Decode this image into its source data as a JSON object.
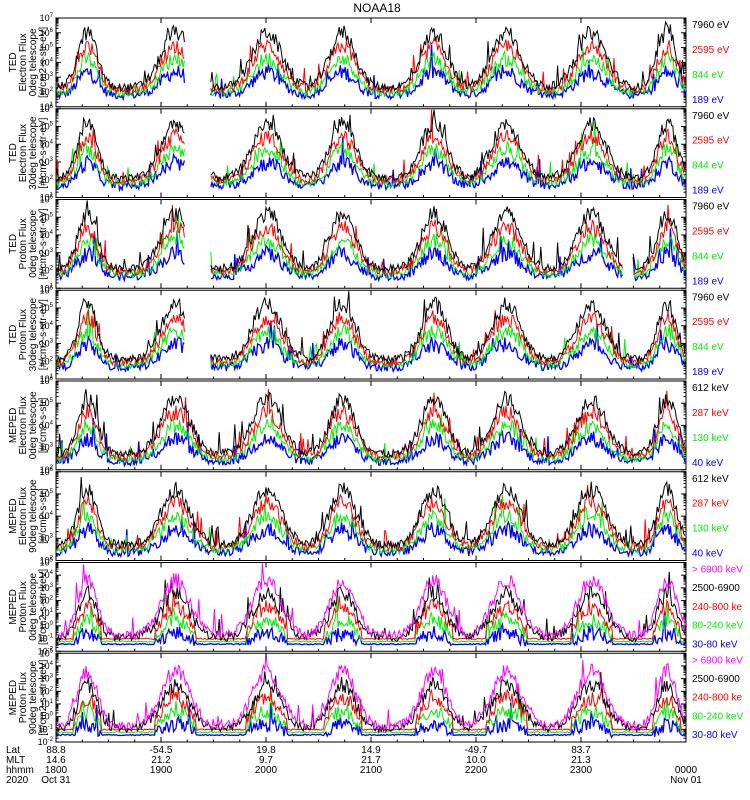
{
  "colors": {
    "black": "#000000",
    "red": "#ff0000",
    "green": "#00ee00",
    "blue": "#0000ff",
    "magenta": "#ff00ff"
  },
  "chart_data": {
    "type": "line",
    "title": "NOAA18",
    "panels": [
      {
        "ylabel": [
          "TED",
          "Electron Flux",
          "0deg telescope",
          "[#/cm2-s-str-eV]"
        ],
        "y_exp_range": [
          1,
          7
        ],
        "channels": [
          {
            "label": "7960 eV",
            "color": "#000000"
          },
          {
            "label": "2595 eV",
            "color": "#ff0000"
          },
          {
            "label": "844 eV",
            "color": "#00ee00"
          },
          {
            "label": "189 eV",
            "color": "#0000ff"
          }
        ]
      },
      {
        "ylabel": [
          "TED",
          "Electron Flux",
          "30deg telescope",
          "[#/cm2-s-str-eV]"
        ],
        "y_exp_range": [
          1,
          6
        ],
        "channels": [
          {
            "label": "7960 eV",
            "color": "#000000"
          },
          {
            "label": "2595 eV",
            "color": "#ff0000"
          },
          {
            "label": "844 eV",
            "color": "#00ee00"
          },
          {
            "label": "189 eV",
            "color": "#0000ff"
          }
        ]
      },
      {
        "ylabel": [
          "TED",
          "Proton Flux",
          "0deg telescope",
          "[#/cm2-s-str-eV]"
        ],
        "y_exp_range": [
          1,
          6
        ],
        "channels": [
          {
            "label": "7960 eV",
            "color": "#000000"
          },
          {
            "label": "2595 eV",
            "color": "#ff0000"
          },
          {
            "label": "844 eV",
            "color": "#00ee00"
          },
          {
            "label": "189 eV",
            "color": "#0000ff"
          }
        ]
      },
      {
        "ylabel": [
          "TED",
          "Proton Flux",
          "30deg telescope",
          "[#/cm2-s-str-eV]"
        ],
        "y_exp_range": [
          1,
          6
        ],
        "channels": [
          {
            "label": "7960 eV",
            "color": "#000000"
          },
          {
            "label": "2595 eV",
            "color": "#ff0000"
          },
          {
            "label": "844 eV",
            "color": "#00ee00"
          },
          {
            "label": "189 eV",
            "color": "#0000ff"
          }
        ]
      },
      {
        "ylabel": [
          "MEPED",
          "Electron Flux",
          "0deg telescope",
          "[#/cm2-s-str]"
        ],
        "y_exp_range": [
          2,
          6
        ],
        "channels": [
          {
            "label": "612 keV",
            "color": "#000000"
          },
          {
            "label": "287 keV",
            "color": "#ff0000"
          },
          {
            "label": "130 keV",
            "color": "#00ee00"
          },
          {
            "label": "40 keV",
            "color": "#0000ff"
          }
        ]
      },
      {
        "ylabel": [
          "MEPED",
          "Electron Flux",
          "90deg telescope",
          "[#/cm2-s-str]"
        ],
        "y_exp_range": [
          2,
          6
        ],
        "channels": [
          {
            "label": "612 keV",
            "color": "#000000"
          },
          {
            "label": "287 keV",
            "color": "#ff0000"
          },
          {
            "label": "130 keV",
            "color": "#00ee00"
          },
          {
            "label": "40 keV",
            "color": "#0000ff"
          }
        ]
      },
      {
        "ylabel": [
          "MEPED",
          "Proton Flux",
          "0deg telescope",
          "[#/cm2-s-str-keV]"
        ],
        "y_exp_range": [
          -2,
          5
        ],
        "channels": [
          {
            "label": "> 6900 keV",
            "color": "#ff00ff"
          },
          {
            "label": "2500-6900",
            "color": "#000000"
          },
          {
            "label": "240-800 ke",
            "color": "#ff0000"
          },
          {
            "label": "80-240 keV",
            "color": "#00ee00"
          },
          {
            "label": "30-80 keV",
            "color": "#0000ff"
          }
        ]
      },
      {
        "ylabel": [
          "MEPED",
          "Proton Flux",
          "90deg telescope",
          "[#/cm2-s-str-keV]"
        ],
        "y_exp_range": [
          -2,
          5
        ],
        "channels": [
          {
            "label": "> 6900 keV",
            "color": "#ff00ff"
          },
          {
            "label": "2500-6900",
            "color": "#000000"
          },
          {
            "label": "240-800 ke",
            "color": "#ff0000"
          },
          {
            "label": "80-240 keV",
            "color": "#00ee00"
          },
          {
            "label": "30-80 keV",
            "color": "#0000ff"
          }
        ]
      }
    ],
    "x_axis": {
      "row_labels": [
        "Lat",
        "MLT",
        "hhmm",
        "2020"
      ],
      "ticks": [
        {
          "frac": 0.0,
          "lat": "88.8",
          "mlt": "14.6",
          "hhmm": "1800",
          "date": "Oct 31"
        },
        {
          "frac": 0.1667,
          "lat": "-54.5",
          "mlt": "21.2",
          "hhmm": "1900",
          "date": ""
        },
        {
          "frac": 0.3333,
          "lat": "19.8",
          "mlt": "9.7",
          "hhmm": "2000",
          "date": ""
        },
        {
          "frac": 0.5,
          "lat": "14.9",
          "mlt": "21.7",
          "hhmm": "2100",
          "date": ""
        },
        {
          "frac": 0.6667,
          "lat": "-49.7",
          "mlt": "10.0",
          "hhmm": "2200",
          "date": ""
        },
        {
          "frac": 0.8333,
          "lat": "83.7",
          "mlt": "21.3",
          "hhmm": "2300",
          "date": ""
        },
        {
          "frac": 1.0,
          "lat": "",
          "mlt": "",
          "hhmm": "0000",
          "date": "Nov 01"
        }
      ]
    },
    "passes": [
      {
        "center": 0.05,
        "width": 0.03
      },
      {
        "center": 0.19,
        "width": 0.045
      },
      {
        "center": 0.335,
        "width": 0.045
      },
      {
        "center": 0.455,
        "width": 0.04
      },
      {
        "center": 0.6,
        "width": 0.04
      },
      {
        "center": 0.715,
        "width": 0.045
      },
      {
        "center": 0.85,
        "width": 0.045
      },
      {
        "center": 0.97,
        "width": 0.03
      }
    ]
  }
}
